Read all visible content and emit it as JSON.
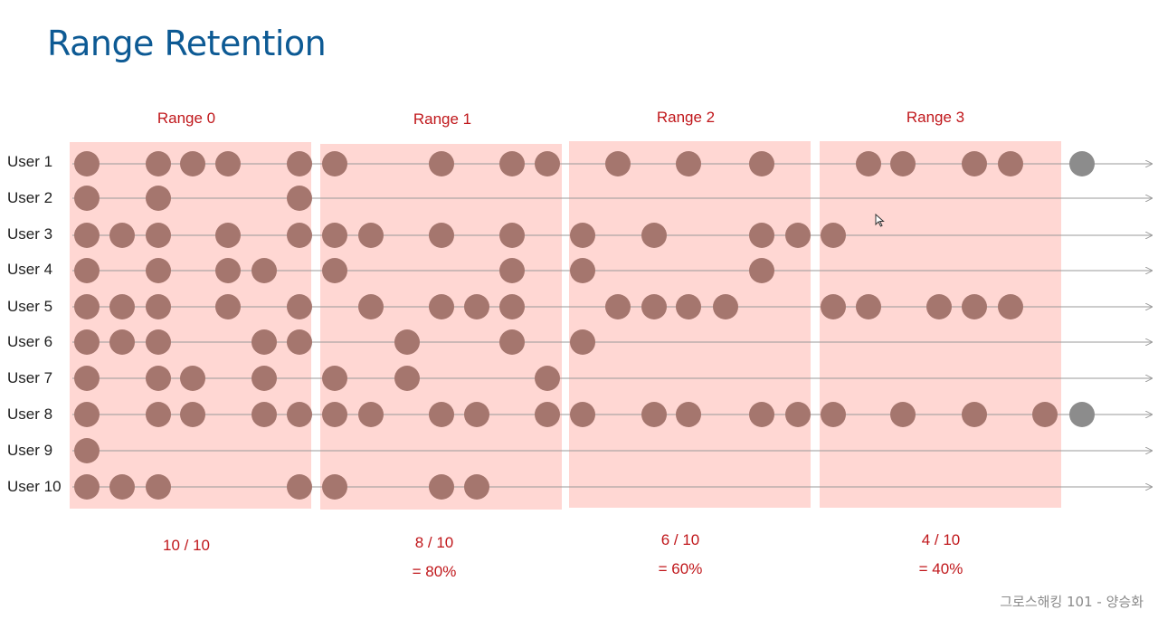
{
  "title": "Range Retention",
  "ranges": [
    {
      "label": "Range 0",
      "result": "10 / 10",
      "percent": ""
    },
    {
      "label": "Range 1",
      "result": "8 / 10",
      "percent": "= 80%"
    },
    {
      "label": "Range 2",
      "result": "6 / 10",
      "percent": "= 60%"
    },
    {
      "label": "Range 3",
      "result": "4 / 10",
      "percent": "= 40%"
    }
  ],
  "users": [
    "User 1",
    "User 2",
    "User 3",
    "User 4",
    "User 5",
    "User 6",
    "User 7",
    "User 8",
    "User 9",
    "User 10"
  ],
  "footer": "그로스해킹 101 - 양승화",
  "colors": {
    "title": "#0d5a94",
    "accent_red": "#c0171b",
    "range_fill": "#ffd7d3",
    "event_dot": "#a5766e",
    "future_dot": "#8c8c8c",
    "timeline": "#9a9a9a"
  }
}
